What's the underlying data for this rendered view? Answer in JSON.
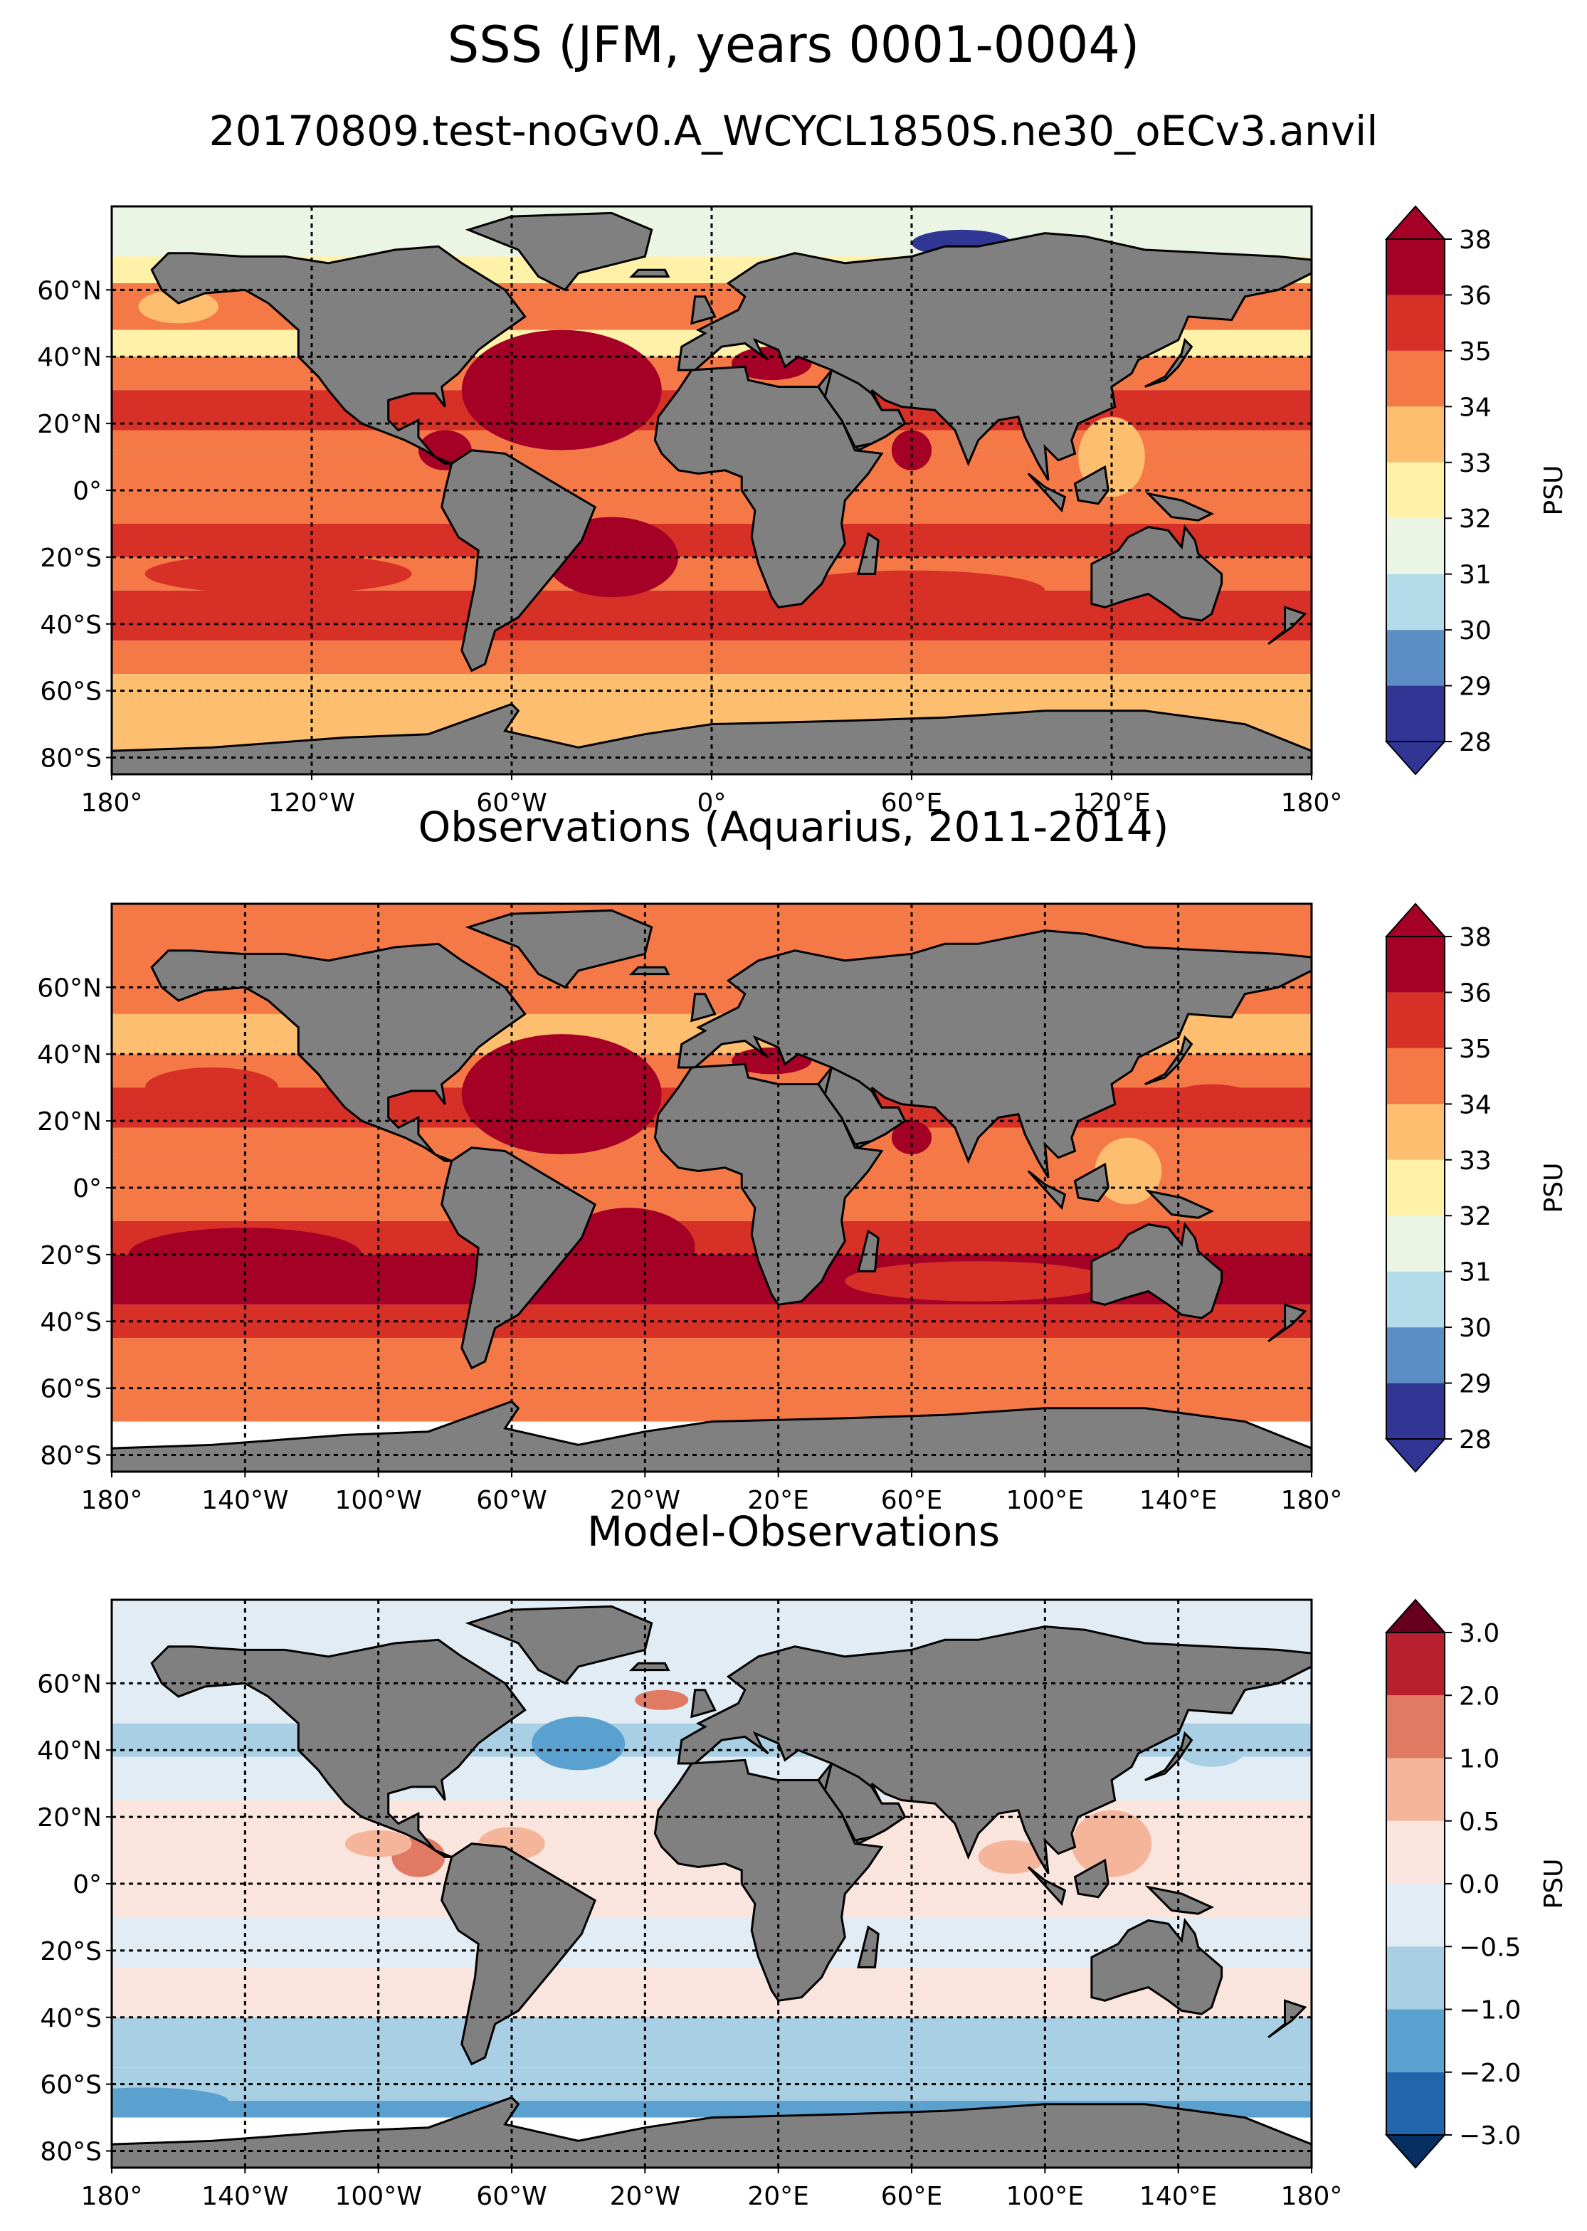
{
  "figure": {
    "title": "SSS (JFM, years 0001-0004)",
    "subtitle": "20170809.test-noGv0.A_WCYCL1850S.ne30_oECv3.anvil",
    "colors": {
      "land": "#808080",
      "coast": "#000000",
      "missing": "#ffffff"
    }
  },
  "panels": [
    {
      "id": "model",
      "title": "",
      "lat_ticks": [
        "60°N",
        "40°N",
        "20°N",
        "0°",
        "20°S",
        "40°S",
        "60°S",
        "80°S"
      ],
      "lon_ticks": [
        "180°",
        "120°W",
        "60°W",
        "0°",
        "60°E",
        "120°E",
        "180°"
      ],
      "colorbar": {
        "label": "PSU",
        "levels": [
          "28",
          "29",
          "30",
          "31",
          "32",
          "33",
          "34",
          "35",
          "36",
          "38"
        ],
        "colors": [
          "#313695",
          "#5b8ec4",
          "#b3dbe9",
          "#eaf5e4",
          "#fff1a8",
          "#fdbf6f",
          "#f57946",
          "#d73027",
          "#a50026"
        ],
        "extend_colors": {
          "low": "#313695",
          "high": "#a50026"
        }
      }
    },
    {
      "id": "obs",
      "title": "Observations (Aquarius, 2011-2014)",
      "lat_ticks": [
        "60°N",
        "40°N",
        "20°N",
        "0°",
        "20°S",
        "40°S",
        "60°S",
        "80°S"
      ],
      "lon_ticks": [
        "180°",
        "140°W",
        "100°W",
        "60°W",
        "20°W",
        "20°E",
        "60°E",
        "100°E",
        "140°E",
        "180°"
      ],
      "colorbar": {
        "label": "PSU",
        "levels": [
          "28",
          "29",
          "30",
          "31",
          "32",
          "33",
          "34",
          "35",
          "36",
          "38"
        ],
        "colors": [
          "#313695",
          "#5b8ec4",
          "#b3dbe9",
          "#eaf5e4",
          "#fff1a8",
          "#fdbf6f",
          "#f57946",
          "#d73027",
          "#a50026"
        ],
        "extend_colors": {
          "low": "#313695",
          "high": "#a50026"
        }
      }
    },
    {
      "id": "diff",
      "title": "Model-Observations",
      "lat_ticks": [
        "60°N",
        "40°N",
        "20°N",
        "0°",
        "20°S",
        "40°S",
        "60°S",
        "80°S"
      ],
      "lon_ticks": [
        "180°",
        "140°W",
        "100°W",
        "60°W",
        "20°W",
        "20°E",
        "60°E",
        "100°E",
        "140°E",
        "180°"
      ],
      "colorbar": {
        "label": "PSU",
        "levels": [
          "−3.0",
          "−2.0",
          "−1.0",
          "−0.5",
          "0.0",
          "0.5",
          "1.0",
          "2.0",
          "3.0"
        ],
        "colors": [
          "#2166ac",
          "#5aa1cf",
          "#a9cfe5",
          "#e1ecf4",
          "#f9e5dd",
          "#f4b59b",
          "#e07a63",
          "#b8202f"
        ],
        "extend_colors": {
          "low": "#053061",
          "high": "#67001f"
        }
      }
    }
  ]
}
